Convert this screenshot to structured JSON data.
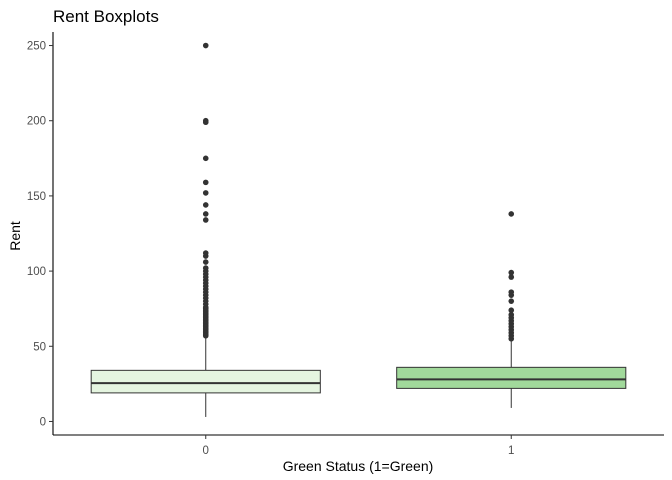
{
  "chart_data": {
    "type": "boxplot",
    "title": "Rent Boxplots",
    "xlabel": "Green Status (1=Green)",
    "ylabel": "Rent",
    "categories": [
      "0",
      "1"
    ],
    "ylim": [
      -9,
      259
    ],
    "yticks": [
      0,
      50,
      100,
      150,
      200,
      250
    ],
    "grid": false,
    "legend": "none",
    "boxes": [
      {
        "category": "0",
        "fill": "#e5f5e0",
        "whisker_low": 3,
        "q1": 19,
        "median": 25.5,
        "q3": 34,
        "whisker_high": 56,
        "outliers": [
          57,
          58,
          59,
          60,
          61,
          62,
          63,
          64,
          65,
          66,
          67,
          68,
          69,
          70,
          71,
          72,
          73,
          74,
          75,
          76,
          78,
          80,
          82,
          84,
          86,
          88,
          90,
          92,
          94,
          96,
          98,
          100,
          102,
          106,
          110,
          112,
          134,
          138,
          144,
          152,
          159,
          175,
          199,
          200,
          250
        ]
      },
      {
        "category": "1",
        "fill": "#a1d99b",
        "whisker_low": 9,
        "q1": 22,
        "median": 28,
        "q3": 36,
        "whisker_high": 54,
        "outliers": [
          55,
          57,
          59,
          61,
          63,
          65,
          67,
          69,
          71,
          74,
          80,
          84,
          86,
          96,
          99,
          138
        ]
      }
    ],
    "colors": {
      "box_stroke": "#333333",
      "outlier": "#333333",
      "axis": "#000000"
    }
  }
}
